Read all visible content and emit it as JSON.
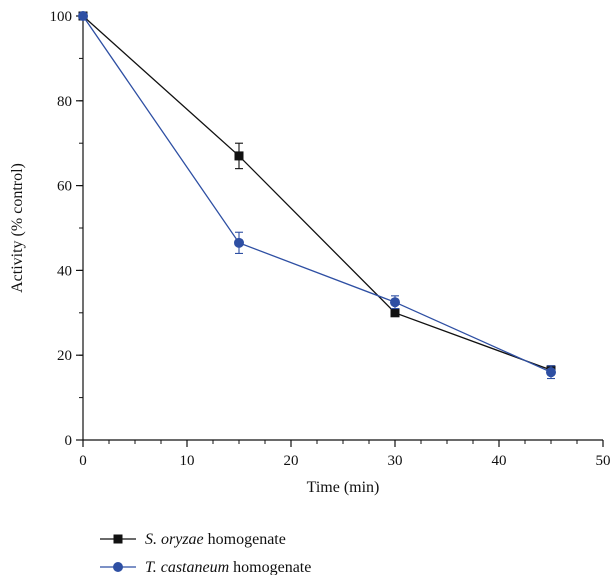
{
  "chart_data": {
    "type": "line",
    "xlabel": "Time (min)",
    "ylabel": "Activity (% control)",
    "xlim": [
      0,
      50
    ],
    "ylim": [
      0,
      100
    ],
    "x_ticks": [
      0,
      10,
      20,
      30,
      40,
      50
    ],
    "y_ticks": [
      0,
      20,
      40,
      60,
      80,
      100
    ],
    "x_minor_step": 2.5,
    "y_minor_step": 10,
    "grid": false,
    "legend_position": "bottom-left",
    "series": [
      {
        "name": "S. oryzae homogenate",
        "name_italic": "S. oryzae",
        "name_suffix": " homogenate",
        "marker": "square",
        "color": "#111111",
        "x": [
          0,
          15,
          30,
          45
        ],
        "y": [
          100,
          67,
          30,
          16.5
        ],
        "error": [
          0,
          3,
          0,
          1
        ]
      },
      {
        "name": "T. castaneum homogenate",
        "name_italic": "T. castaneum",
        "name_suffix": " homogenate",
        "marker": "circle",
        "color": "#2e4fa3",
        "x": [
          0,
          15,
          30,
          45
        ],
        "y": [
          100,
          46.5,
          32.5,
          16
        ],
        "error": [
          0,
          2.5,
          1.5,
          1.5
        ]
      }
    ]
  }
}
